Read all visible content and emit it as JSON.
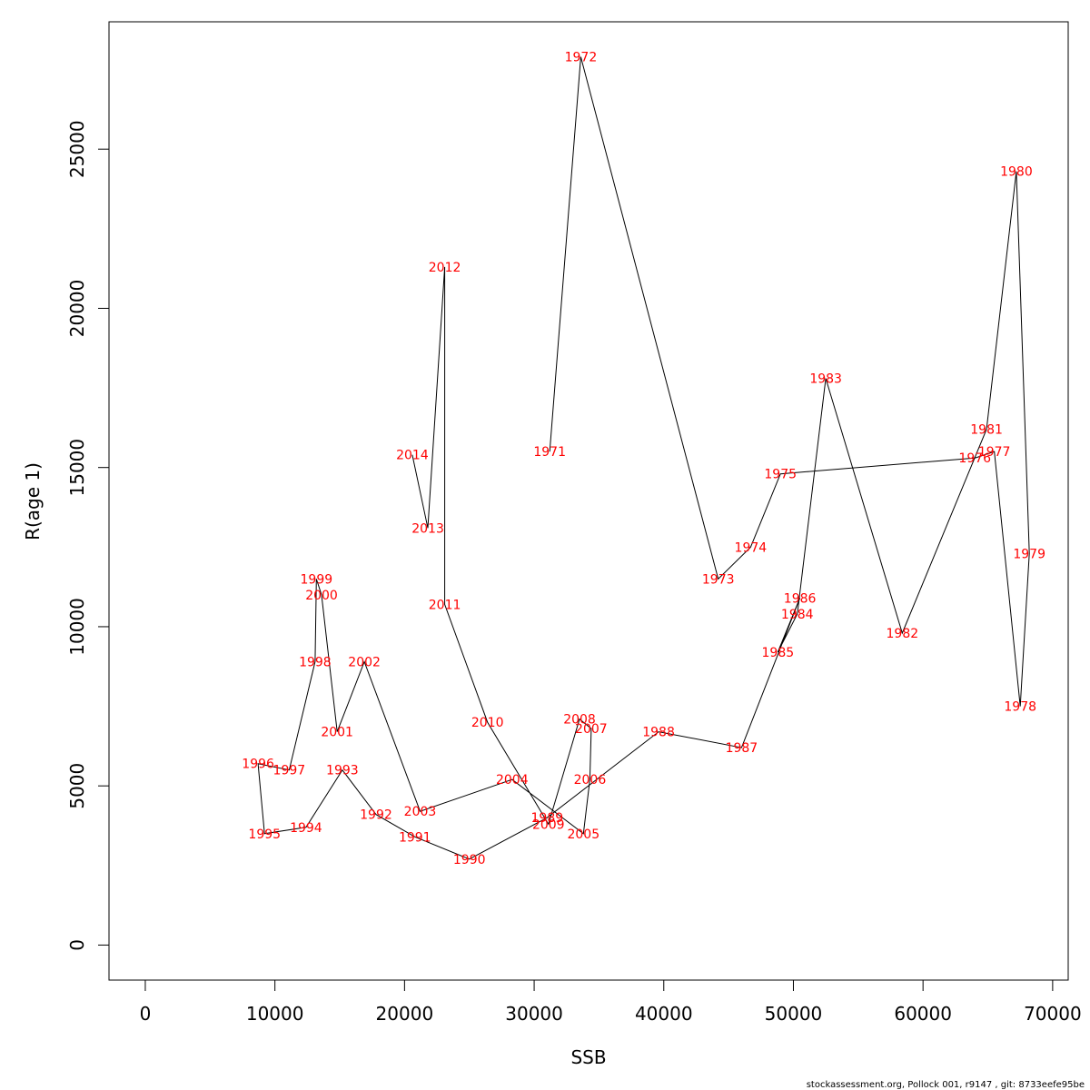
{
  "chart_data": {
    "type": "line",
    "xlabel": "SSB",
    "ylabel": "R(age 1)",
    "xlim": [
      -2800,
      71200
    ],
    "ylim": [
      -1100,
      29000
    ],
    "xticks": [
      0,
      10000,
      20000,
      30000,
      40000,
      50000,
      60000,
      70000
    ],
    "yticks": [
      0,
      5000,
      10000,
      15000,
      20000,
      25000
    ],
    "label_color": "#ff0000",
    "line_color": "#000000",
    "points": [
      {
        "year": "1971",
        "x": 31200,
        "y": 15500
      },
      {
        "year": "1972",
        "x": 33600,
        "y": 27900
      },
      {
        "year": "1973",
        "x": 44200,
        "y": 11500
      },
      {
        "year": "1974",
        "x": 46700,
        "y": 12500
      },
      {
        "year": "1975",
        "x": 49000,
        "y": 14800
      },
      {
        "year": "1976",
        "x": 64000,
        "y": 15300
      },
      {
        "year": "1977",
        "x": 65500,
        "y": 15500
      },
      {
        "year": "1978",
        "x": 67500,
        "y": 7500
      },
      {
        "year": "1979",
        "x": 68200,
        "y": 12300
      },
      {
        "year": "1980",
        "x": 67200,
        "y": 24300
      },
      {
        "year": "1981",
        "x": 64900,
        "y": 16200
      },
      {
        "year": "1982",
        "x": 58400,
        "y": 9800
      },
      {
        "year": "1983",
        "x": 52500,
        "y": 17800
      },
      {
        "year": "1984",
        "x": 50300,
        "y": 10400
      },
      {
        "year": "1985",
        "x": 48800,
        "y": 9200
      },
      {
        "year": "1986",
        "x": 50500,
        "y": 10900
      },
      {
        "year": "1987",
        "x": 46000,
        "y": 6200
      },
      {
        "year": "1988",
        "x": 39600,
        "y": 6700
      },
      {
        "year": "1989",
        "x": 31000,
        "y": 4000
      },
      {
        "year": "1990",
        "x": 25000,
        "y": 2700
      },
      {
        "year": "1991",
        "x": 20800,
        "y": 3400
      },
      {
        "year": "1992",
        "x": 17800,
        "y": 4100
      },
      {
        "year": "1993",
        "x": 15200,
        "y": 5500
      },
      {
        "year": "1994",
        "x": 12400,
        "y": 3700
      },
      {
        "year": "1995",
        "x": 9200,
        "y": 3500
      },
      {
        "year": "1996",
        "x": 8700,
        "y": 5700
      },
      {
        "year": "1997",
        "x": 11100,
        "y": 5500
      },
      {
        "year": "1998",
        "x": 13100,
        "y": 8900
      },
      {
        "year": "1999",
        "x": 13200,
        "y": 11500
      },
      {
        "year": "2000",
        "x": 13600,
        "y": 11000
      },
      {
        "year": "2001",
        "x": 14800,
        "y": 6700
      },
      {
        "year": "2002",
        "x": 16900,
        "y": 8900
      },
      {
        "year": "2003",
        "x": 21200,
        "y": 4200
      },
      {
        "year": "2004",
        "x": 28300,
        "y": 5200
      },
      {
        "year": "2005",
        "x": 33800,
        "y": 3500
      },
      {
        "year": "2006",
        "x": 34300,
        "y": 5200
      },
      {
        "year": "2007",
        "x": 34400,
        "y": 6800
      },
      {
        "year": "2008",
        "x": 33500,
        "y": 7100
      },
      {
        "year": "2009",
        "x": 31100,
        "y": 3800
      },
      {
        "year": "2010",
        "x": 26400,
        "y": 7000
      },
      {
        "year": "2011",
        "x": 23100,
        "y": 10700
      },
      {
        "year": "2012",
        "x": 23100,
        "y": 21300
      },
      {
        "year": "2013",
        "x": 21800,
        "y": 13100
      },
      {
        "year": "2014",
        "x": 20600,
        "y": 15400
      }
    ]
  },
  "footer": {
    "text": "stockassessment.org, Pollock  001, r9147 , git: 8733eefe95be"
  }
}
